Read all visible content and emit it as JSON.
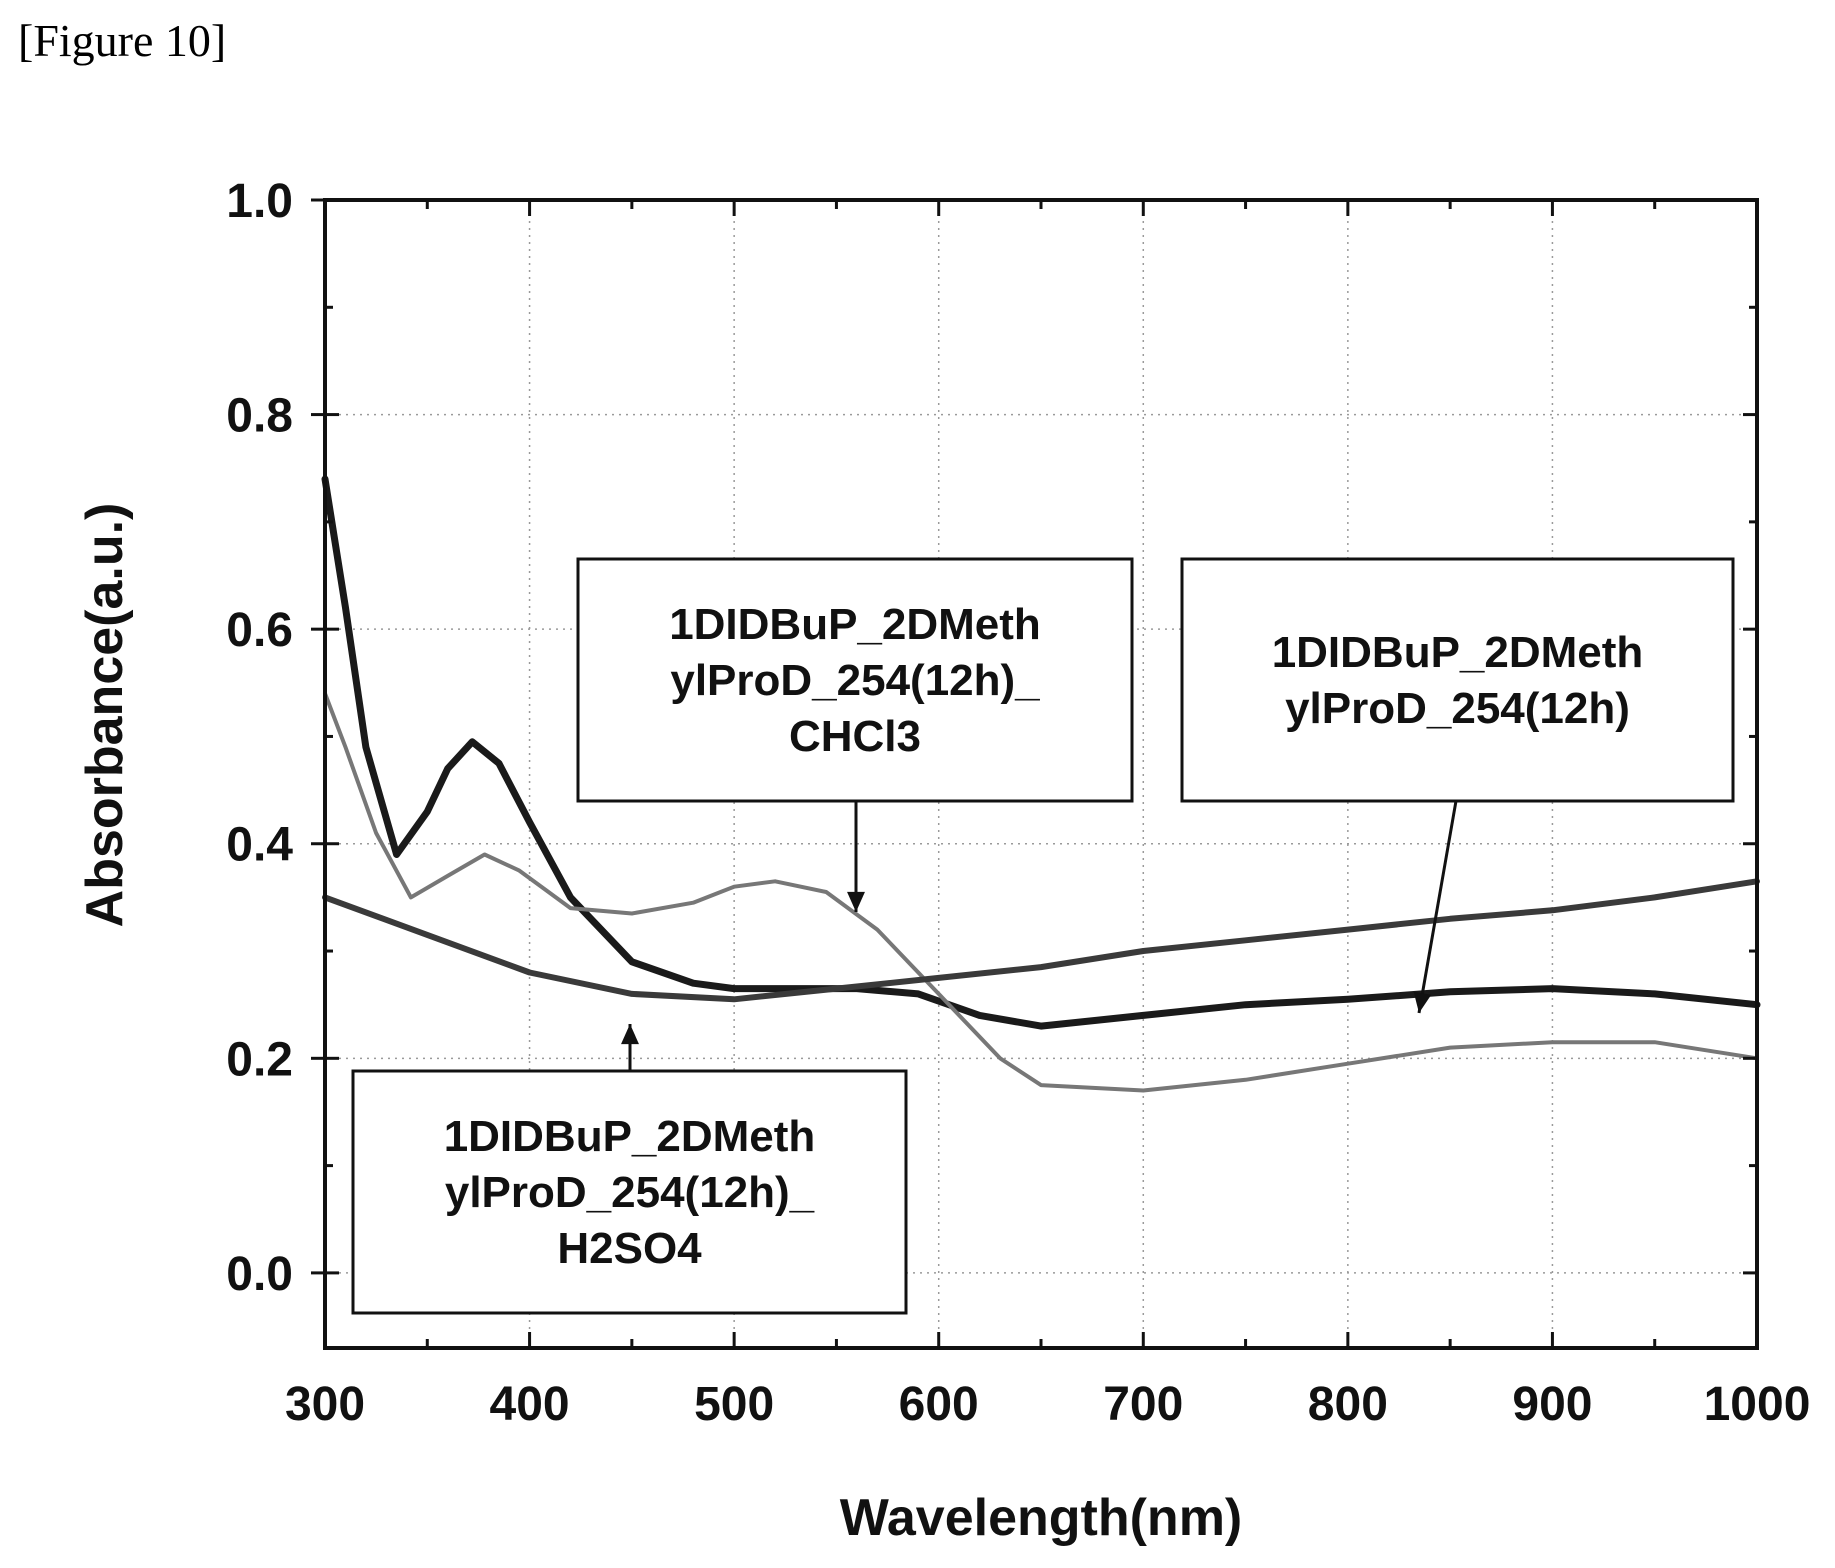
{
  "figure_label": "[Figure 10]",
  "chart_data": {
    "type": "line",
    "xlabel": "Wavelength(nm)",
    "ylabel": "Absorbance(a.u.)",
    "xlim": [
      300,
      1000
    ],
    "ylim": [
      -0.07,
      1.0
    ],
    "xticks": [
      300,
      400,
      500,
      600,
      700,
      800,
      900,
      1000
    ],
    "yticks": [
      0.0,
      0.2,
      0.4,
      0.6,
      0.8,
      1.0
    ],
    "ytick_labels": [
      "0.0",
      "0.2",
      "0.4",
      "0.6",
      "0.8",
      "1.0"
    ],
    "grid": true,
    "series": [
      {
        "name": "1DIDBuP_2DMethylProD_254(12h)",
        "color": "#1a1a1a",
        "x": [
          300,
          310,
          320,
          335,
          350,
          360,
          372,
          385,
          400,
          420,
          450,
          480,
          500,
          530,
          560,
          590,
          620,
          650,
          700,
          750,
          800,
          850,
          900,
          950,
          1000
        ],
        "y": [
          0.74,
          0.62,
          0.49,
          0.39,
          0.43,
          0.47,
          0.495,
          0.475,
          0.42,
          0.35,
          0.29,
          0.27,
          0.265,
          0.265,
          0.265,
          0.26,
          0.24,
          0.23,
          0.24,
          0.25,
          0.255,
          0.262,
          0.265,
          0.26,
          0.25
        ]
      },
      {
        "name": "1DIDBuP_2DMethylProD_254(12h)_CHCl3",
        "color": "#777777",
        "x": [
          300,
          310,
          325,
          342,
          360,
          378,
          395,
          420,
          450,
          480,
          500,
          520,
          545,
          570,
          600,
          630,
          650,
          700,
          750,
          800,
          850,
          900,
          950,
          1000
        ],
        "y": [
          0.54,
          0.49,
          0.41,
          0.35,
          0.37,
          0.39,
          0.375,
          0.34,
          0.335,
          0.345,
          0.36,
          0.365,
          0.355,
          0.32,
          0.26,
          0.2,
          0.175,
          0.17,
          0.18,
          0.195,
          0.21,
          0.215,
          0.215,
          0.2
        ]
      },
      {
        "name": "1DIDBuP_2DMethylProD_254(12h)_H2SO4",
        "color": "#3a3a3a",
        "x": [
          300,
          350,
          400,
          450,
          500,
          550,
          600,
          650,
          700,
          750,
          800,
          850,
          900,
          950,
          1000
        ],
        "y": [
          0.35,
          0.315,
          0.28,
          0.26,
          0.255,
          0.265,
          0.275,
          0.285,
          0.3,
          0.31,
          0.32,
          0.33,
          0.338,
          0.35,
          0.365
        ]
      }
    ],
    "annotations": [
      {
        "lines": [
          "1DIDBuP_2DMeth",
          "ylProD_254(12h)_",
          "CHCl3"
        ]
      },
      {
        "lines": [
          "1DIDBuP_2DMeth",
          "ylProD_254(12h)"
        ]
      },
      {
        "lines": [
          "1DIDBuP_2DMeth",
          "ylProD_254(12h)_",
          "H2SO4"
        ]
      }
    ]
  }
}
